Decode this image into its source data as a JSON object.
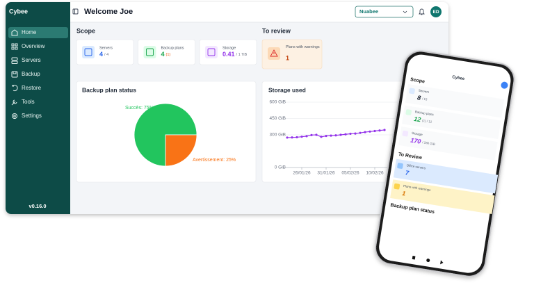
{
  "sidebar": {
    "brand": "Cybee",
    "nav": [
      "Home",
      "Overview",
      "Servers",
      "Backup",
      "Restore",
      "Tools",
      "Settings"
    ],
    "version": "v0.16.0"
  },
  "header": {
    "title": "Welcome Joe",
    "organization": "Nuabee",
    "avatar": "ED"
  },
  "scope": {
    "title": "Scope",
    "cards": [
      {
        "label": "Servers",
        "value": "4",
        "detail": "/ 4"
      },
      {
        "label": "Backup plans",
        "value": "4",
        "detail": "(1)"
      },
      {
        "label": "Storage",
        "value": "0.41",
        "detail": "/ 1 TiB"
      }
    ]
  },
  "review": {
    "title": "To review",
    "cards": [
      {
        "label": "Plans with warnings",
        "value": "1"
      }
    ]
  },
  "backup_status": {
    "type": "pie",
    "title": "Backup plan status",
    "values": [
      75,
      25
    ],
    "value_labels": [
      "Succès: 75%",
      "Avertissement: 25%"
    ],
    "colors": [
      "#22c55e",
      "#f97316"
    ]
  },
  "storage_chart": {
    "type": "line",
    "title": "Storage used",
    "color": "#9333ea",
    "categories": [
      null,
      null,
      null,
      "26/01/26",
      null,
      null,
      null,
      null,
      "31/01/26",
      null,
      null,
      null,
      null,
      "05/02/26",
      null,
      null,
      null,
      null,
      "10/02/26",
      null,
      null
    ],
    "values": [
      275,
      276,
      278,
      283,
      288,
      298,
      300,
      282,
      290,
      293,
      295,
      300,
      305,
      310,
      312,
      318,
      325,
      330,
      335,
      340,
      345
    ],
    "ylim": [
      0,
      600
    ],
    "yticks": [
      {
        "value": 0,
        "label": "0 GiB"
      },
      {
        "value": 300,
        "label": "300 GiB"
      },
      {
        "value": 450,
        "label": "450 GiB"
      },
      {
        "value": 600,
        "label": "600 GiB"
      }
    ],
    "grid": true
  },
  "phone": {
    "brand": "Cybee",
    "scope_title": "Scope",
    "cards": [
      {
        "label": "Servers",
        "value": "8",
        "detail": "/ 15"
      },
      {
        "label": "Backup plans",
        "value": "12",
        "detail": "(1) / 12"
      },
      {
        "label": "Storage",
        "value": "170",
        "detail": "/ 280 GiB"
      }
    ],
    "review_title": "To Review",
    "review_cards": [
      {
        "label": "Office servers",
        "value": "7"
      },
      {
        "label": "Plans with warnings",
        "value": "1"
      }
    ],
    "status_title": "Backup plan status"
  }
}
